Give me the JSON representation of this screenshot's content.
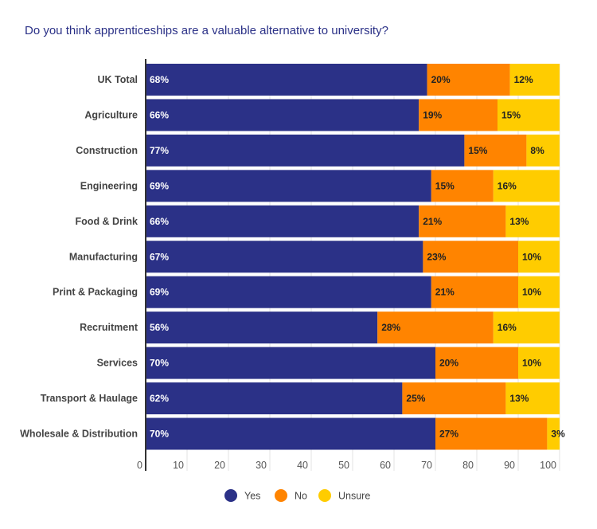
{
  "chart_data": {
    "type": "bar",
    "orientation": "horizontal",
    "stacked": true,
    "title": "Do you think apprenticeships are a valuable alternative to university?",
    "categories": [
      "UK Total",
      "Agriculture",
      "Construction",
      "Engineering",
      "Food & Drink",
      "Manufacturing",
      "Print & Packaging",
      "Recruitment",
      "Services",
      "Transport & Haulage",
      "Wholesale & Distribution"
    ],
    "series": [
      {
        "name": "Yes",
        "color": "#2b3187",
        "values": [
          68,
          66,
          77,
          69,
          66,
          67,
          69,
          56,
          70,
          62,
          70
        ]
      },
      {
        "name": "No",
        "color": "#ff8400",
        "values": [
          20,
          19,
          15,
          15,
          21,
          23,
          21,
          28,
          20,
          25,
          27
        ]
      },
      {
        "name": "Unsure",
        "color": "#ffcc00",
        "values": [
          12,
          15,
          8,
          16,
          13,
          10,
          10,
          16,
          10,
          13,
          3
        ]
      }
    ],
    "xlim": [
      0,
      100
    ],
    "xticks": [
      0,
      10,
      20,
      30,
      40,
      50,
      60,
      70,
      80,
      90,
      100
    ],
    "grid": true,
    "legend": "bottom",
    "data_label_suffix": "%"
  }
}
